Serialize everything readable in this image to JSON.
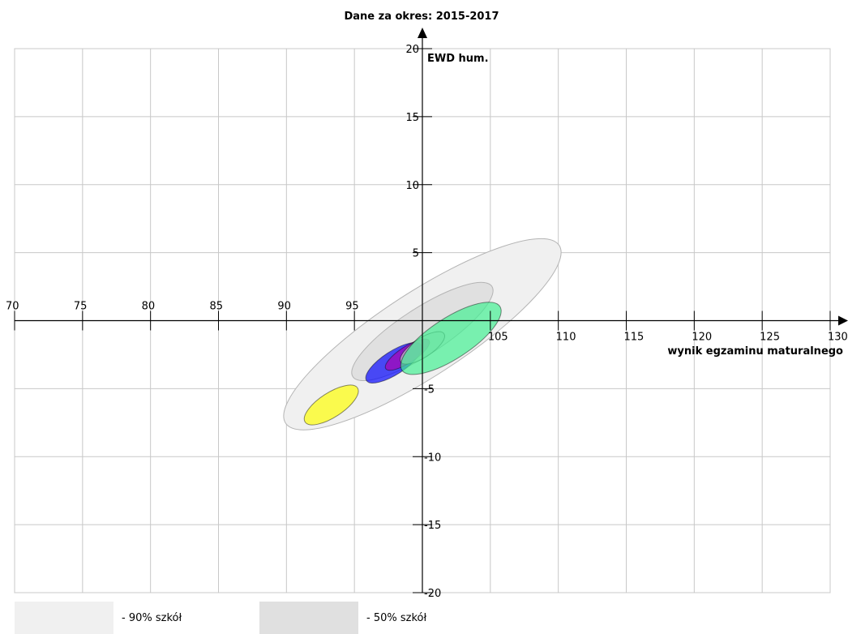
{
  "chart_data": {
    "type": "scatter",
    "title": "Dane za okres: 2015-2017",
    "xlabel": "wynik egzaminu maturalnego",
    "ylabel": "EWD hum.",
    "xlim": [
      70,
      130
    ],
    "ylim": [
      -20,
      20
    ],
    "x_ticks": [
      70,
      75,
      80,
      85,
      90,
      95,
      105,
      110,
      115,
      120,
      125,
      130
    ],
    "y_ticks": [
      20,
      15,
      10,
      5,
      -5,
      -10,
      -15,
      -20
    ],
    "grid": true,
    "regions": [
      {
        "name": "- 90% szkół",
        "color": "#f0f0f0",
        "cx": 100.0,
        "cy": -1.0,
        "rx": 12.0,
        "ry": 3.1,
        "angle": 33
      },
      {
        "name": "- 50% szkół",
        "color": "#e0e0e0",
        "cx": 100.0,
        "cy": -0.8,
        "rx": 6.1,
        "ry": 1.7,
        "angle": 33
      }
    ],
    "ellipses": [
      {
        "color": "#ffff00",
        "cx": 93.3,
        "cy": -6.2,
        "rx": 2.3,
        "ry": 0.9,
        "angle": 33
      },
      {
        "color": "#0000ff",
        "cx": 97.9,
        "cy": -3.1,
        "rx": 2.4,
        "ry": 0.85,
        "angle": 33
      },
      {
        "color": "#b000b0",
        "cx": 98.9,
        "cy": -2.5,
        "rx": 1.9,
        "ry": 0.6,
        "angle": 33
      },
      {
        "color": "#cccccc",
        "cx": 100.0,
        "cy": -2.0,
        "rx": 1.9,
        "ry": 0.7,
        "angle": 33
      },
      {
        "color": "#40f090",
        "cx": 102.1,
        "cy": -1.3,
        "rx": 4.3,
        "ry": 1.5,
        "angle": 33
      }
    ],
    "legend": [
      {
        "label": "- 90% szkół",
        "color": "#f0f0f0"
      },
      {
        "label": "- 50% szkół",
        "color": "#e0e0e0"
      }
    ]
  }
}
